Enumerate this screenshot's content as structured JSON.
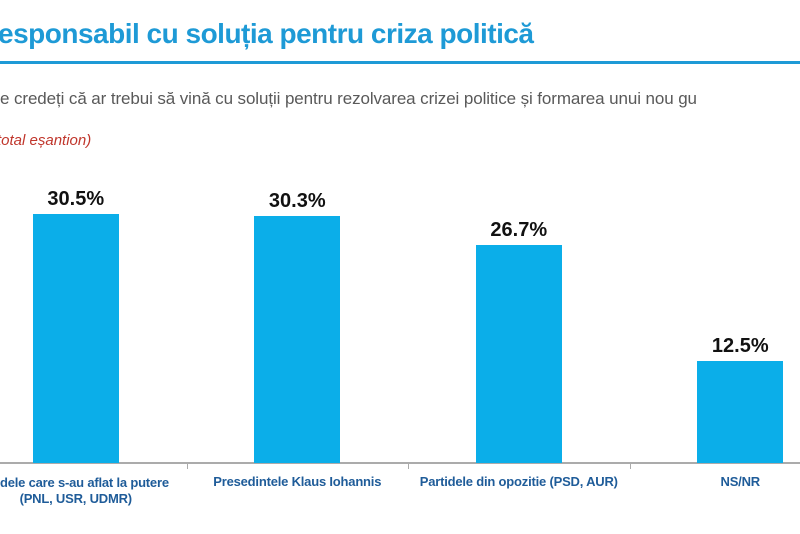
{
  "header": {
    "title": "esponsabil cu soluția pentru criza politică",
    "title_color": "#1E9AD6",
    "subtitle": "e credeți că ar trebui să vină cu soluții pentru rezolvarea crizei politice și formarea unui nou gu",
    "subtitle_color": "#595959",
    "note": "total eșantion)",
    "note_color": "#C0362C"
  },
  "chart_data": {
    "type": "bar",
    "title": "esponsabil cu soluția pentru criza politică",
    "categories": [
      {
        "lines": [
          "dele care s-au aflat la putere",
          "(PNL, USR, UDMR)"
        ],
        "cut_left": true
      },
      {
        "lines": [
          "Presedintele Klaus Iohannis"
        ],
        "cut_left": false
      },
      {
        "lines": [
          "Partidele din opozitie (PSD, AUR)"
        ],
        "cut_left": false
      },
      {
        "lines": [
          "NS/NR"
        ],
        "cut_left": false
      }
    ],
    "values": [
      30.5,
      30.3,
      26.7,
      12.5
    ],
    "value_labels": [
      "30.5%",
      "30.3%",
      "26.7%",
      "12.5%"
    ],
    "xlabel": "",
    "ylabel": "",
    "ylim": [
      0,
      35
    ],
    "grid": false,
    "legend": false,
    "bar_color": "#0BAEE9",
    "category_label_color": "#1F5C99",
    "value_label_color": "#111111",
    "axis_color": "#ABABAB"
  }
}
